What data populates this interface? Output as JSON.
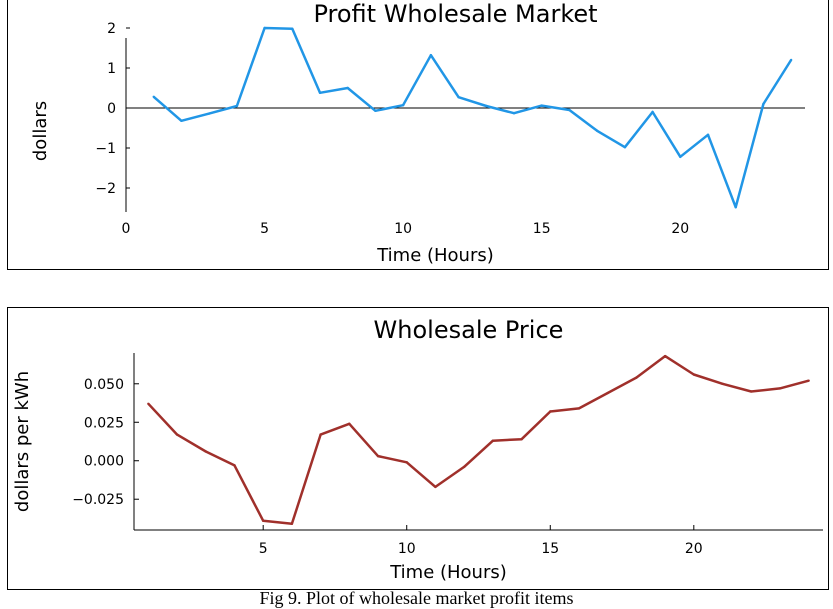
{
  "chart_data": [
    {
      "type": "line",
      "title": "Profit Wholesale Market",
      "xlabel": "Time (Hours)",
      "ylabel": "dollars",
      "xlim": [
        0,
        24.5
      ],
      "ylim": [
        -2.6,
        2.2
      ],
      "x_ticks": [
        0,
        5,
        10,
        15,
        20
      ],
      "y_ticks": [
        2,
        1,
        0,
        -1,
        -2
      ],
      "y_tick_labels": [
        "2",
        "1",
        "0",
        "−1",
        "−2"
      ],
      "zero_line": true,
      "grid": false,
      "color": "#2196e6",
      "x": [
        1,
        2,
        3,
        4,
        5,
        6,
        7,
        8,
        9,
        10,
        11,
        12,
        13,
        14,
        15,
        16,
        17,
        18,
        19,
        20,
        21,
        22,
        23,
        24
      ],
      "values": [
        0.28,
        -0.32,
        -0.14,
        0.05,
        2.0,
        1.98,
        0.38,
        0.5,
        -0.07,
        0.07,
        1.32,
        0.27,
        0.05,
        -0.13,
        0.06,
        -0.05,
        -0.57,
        -0.98,
        -0.1,
        -1.22,
        -0.67,
        -2.48,
        0.1,
        1.2
      ]
    },
    {
      "type": "line",
      "title": "Wholesale Price",
      "xlabel": "Time (Hours)",
      "ylabel": "dollars per kWh",
      "xlim": [
        0.5,
        24.5
      ],
      "ylim": [
        -0.045,
        0.07
      ],
      "x_ticks": [
        5,
        10,
        15,
        20
      ],
      "y_ticks": [
        0.05,
        0.025,
        0.0,
        -0.025
      ],
      "y_tick_labels": [
        "0.050",
        "0.025",
        "0.000",
        "−0.025"
      ],
      "zero_line": false,
      "grid": false,
      "color": "#a0302b",
      "x": [
        1,
        2,
        3,
        4,
        5,
        6,
        7,
        8,
        9,
        10,
        11,
        12,
        13,
        14,
        15,
        16,
        17,
        18,
        19,
        20,
        21,
        22,
        23,
        24
      ],
      "values": [
        0.037,
        0.017,
        0.006,
        -0.003,
        -0.039,
        -0.041,
        0.017,
        0.024,
        0.003,
        -0.001,
        -0.017,
        -0.004,
        0.013,
        0.014,
        0.032,
        0.034,
        0.044,
        0.054,
        0.068,
        0.056,
        0.05,
        0.045,
        0.047,
        0.052
      ]
    }
  ],
  "caption": "Fig 9. Plot of wholesale market profit items"
}
